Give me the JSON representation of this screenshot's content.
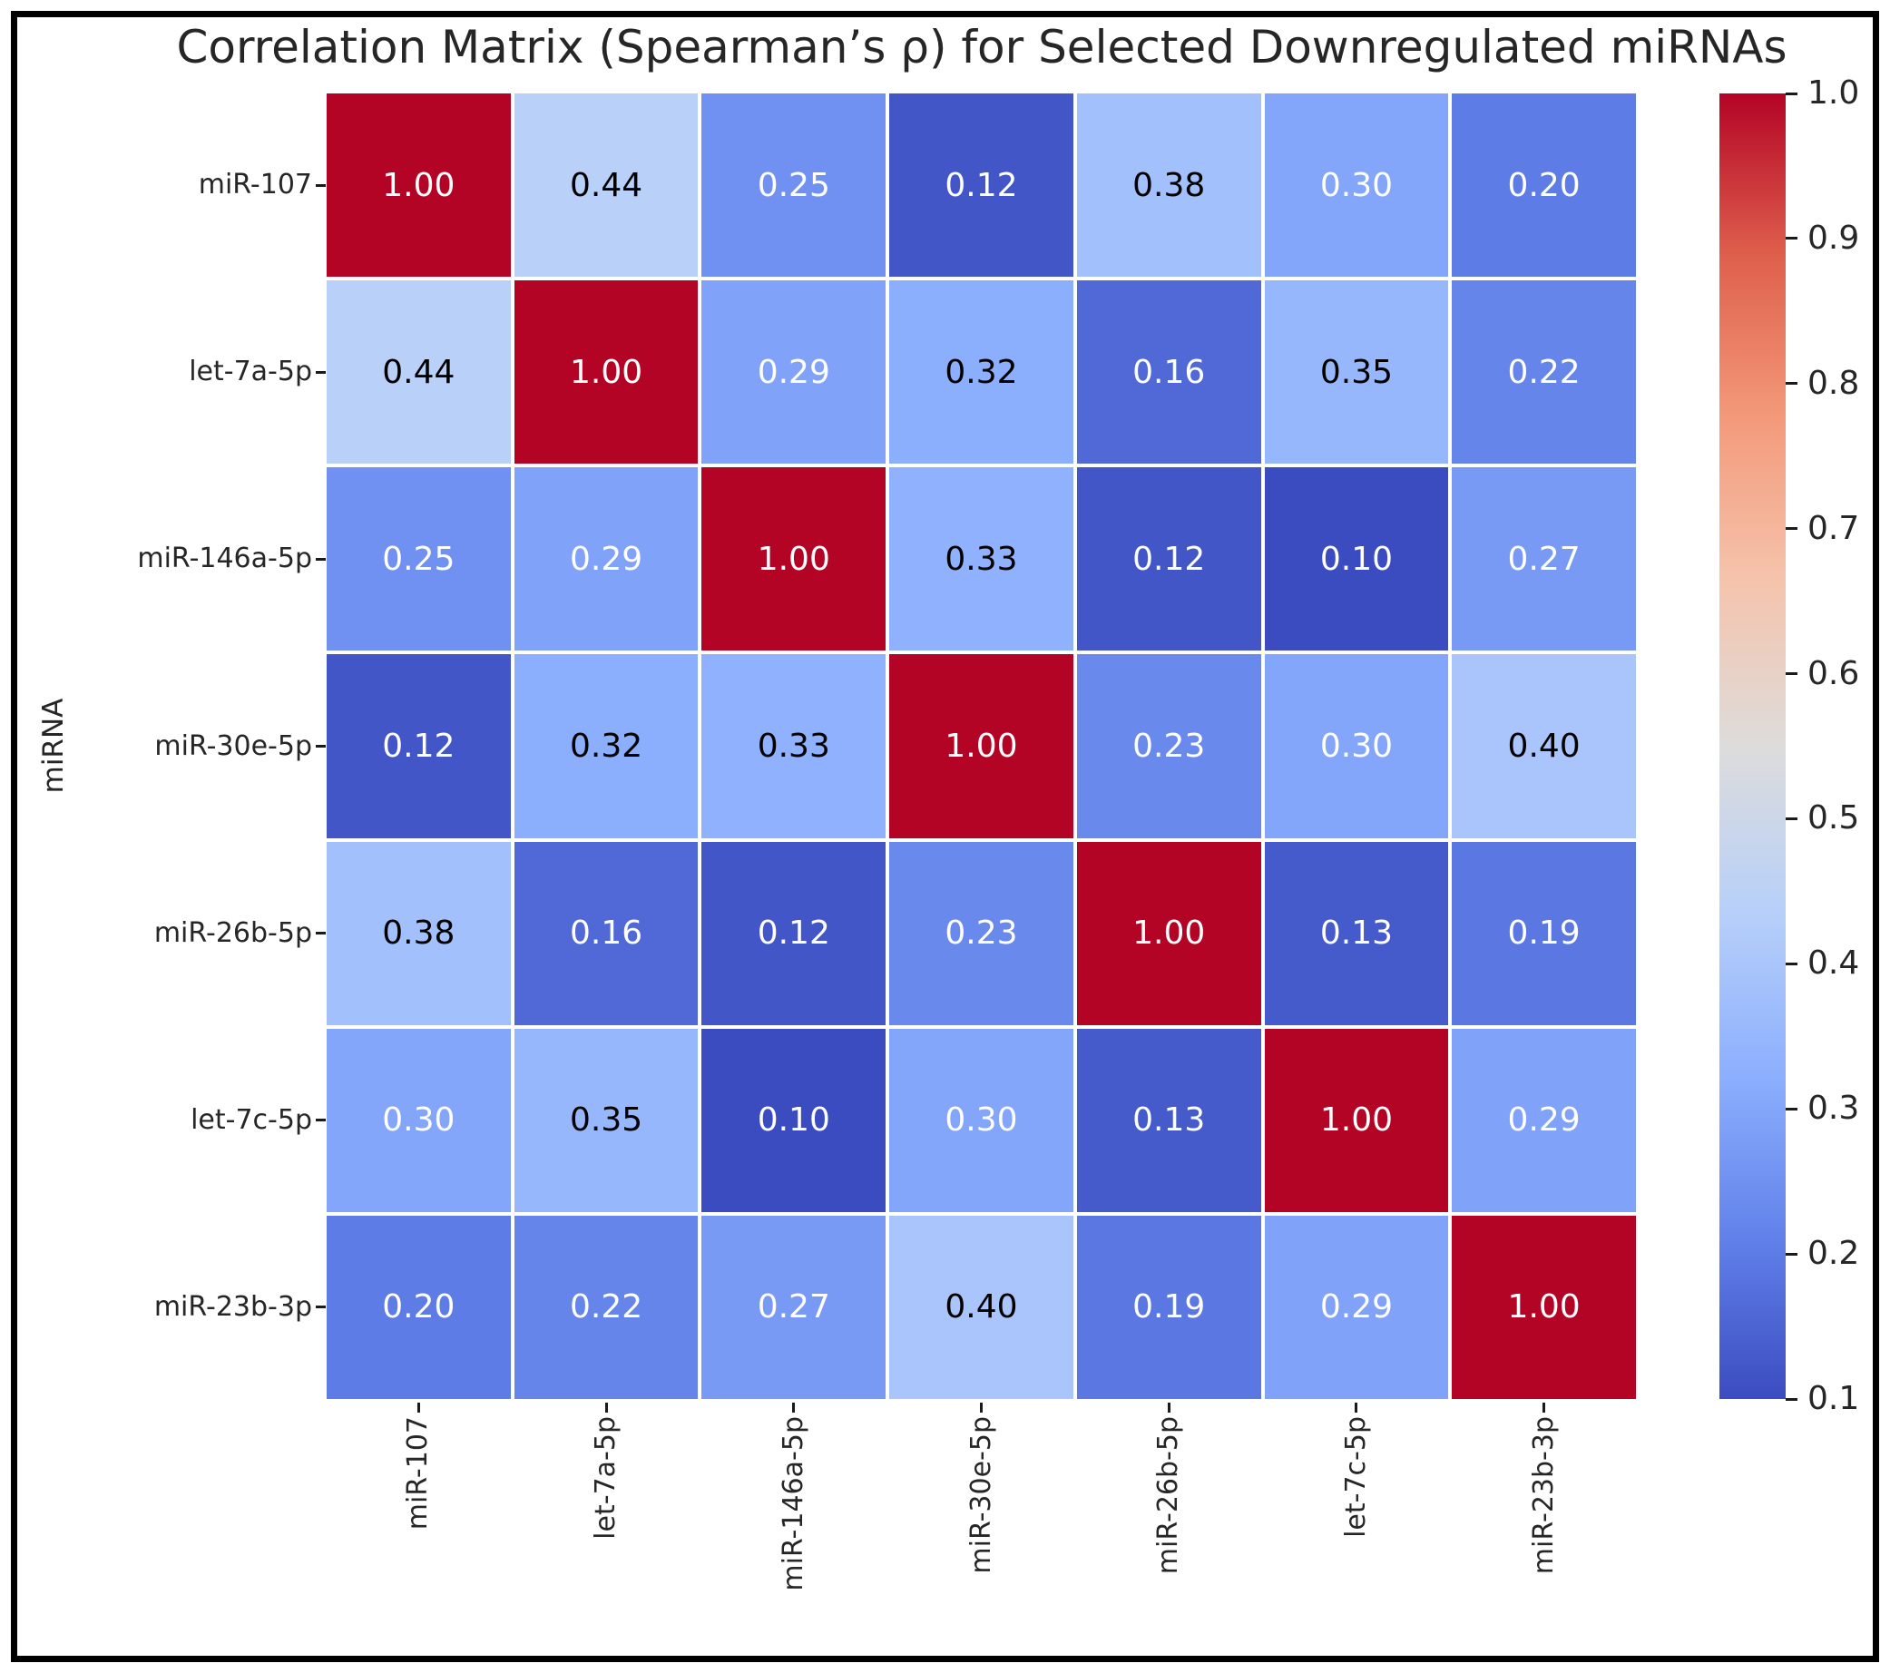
{
  "chart_data": {
    "type": "heatmap",
    "title": "Correlation Matrix (Spearman’s ρ) for Selected Downregulated miRNAs",
    "ylabel": "miRNA",
    "xlabel": "",
    "labels": [
      "miR-107",
      "let-7a-5p",
      "miR-146a-5p",
      "miR-30e-5p",
      "miR-26b-5p",
      "let-7c-5p",
      "miR-23b-3p"
    ],
    "matrix": [
      [
        1.0,
        0.44,
        0.25,
        0.12,
        0.38,
        0.3,
        0.2
      ],
      [
        0.44,
        1.0,
        0.29,
        0.32,
        0.16,
        0.35,
        0.22
      ],
      [
        0.25,
        0.29,
        1.0,
        0.33,
        0.12,
        0.1,
        0.27
      ],
      [
        0.12,
        0.32,
        0.33,
        1.0,
        0.23,
        0.3,
        0.4
      ],
      [
        0.38,
        0.16,
        0.12,
        0.23,
        1.0,
        0.13,
        0.19
      ],
      [
        0.3,
        0.35,
        0.1,
        0.3,
        0.13,
        1.0,
        0.29
      ],
      [
        0.2,
        0.22,
        0.27,
        0.4,
        0.19,
        0.29,
        1.0
      ]
    ],
    "annotation_decimals": 2,
    "vmin": 0.1,
    "vmax": 1.0,
    "colorbar_ticks": [
      "1.0",
      "0.9",
      "0.8",
      "0.7",
      "0.6",
      "0.5",
      "0.4",
      "0.3",
      "0.2",
      "0.1"
    ],
    "colormap": {
      "name": "coolwarm",
      "stops": [
        {
          "t": 0.0,
          "color": "#3B4CC0"
        },
        {
          "t": 0.125,
          "color": "#6282EA"
        },
        {
          "t": 0.25,
          "color": "#8DB0FE"
        },
        {
          "t": 0.375,
          "color": "#B8D0F9"
        },
        {
          "t": 0.5,
          "color": "#DDDCDB"
        },
        {
          "t": 0.625,
          "color": "#F5C4AD"
        },
        {
          "t": 0.75,
          "color": "#F49A7B"
        },
        {
          "t": 0.875,
          "color": "#DE604D"
        },
        {
          "t": 1.0,
          "color": "#B40426"
        }
      ]
    },
    "annotation_text_colors": {
      "on_dark": "#FFFFFF",
      "on_light": "#000000"
    },
    "grid_line_color": "#FFFFFF"
  }
}
